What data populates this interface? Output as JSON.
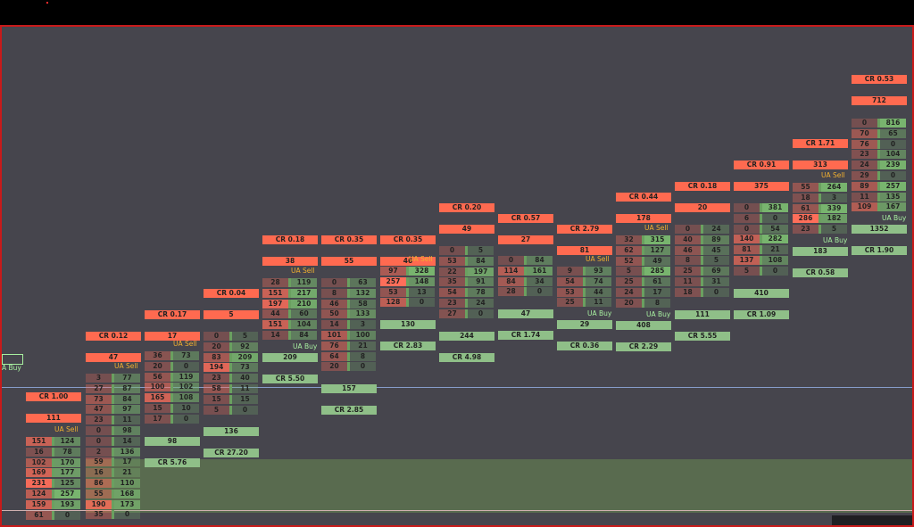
{
  "colors": {
    "background": "#46454d",
    "frame_border": "#c81a1a",
    "ask_red": "#ff6a50",
    "bid_green": "#8fbf88",
    "ua_sell_label": "#f0b030",
    "ua_buy_label": "#a8f0a0",
    "threshold_line": "#8ea6d8",
    "poc_box": "#d01a3a"
  },
  "columns": [
    {
      "cr": "CR 1.00",
      "total": "111",
      "ua": "UA Sell",
      "ua_type": "sell",
      "rows": [
        [
          "151",
          "124"
        ],
        [
          "16",
          "78"
        ],
        [
          "102",
          "170"
        ],
        [
          "169",
          "177"
        ],
        [
          "231",
          "125"
        ],
        [
          "124",
          "257"
        ],
        [
          "159",
          "193"
        ],
        [
          "61",
          "0"
        ]
      ],
      "delta": ""
    },
    {
      "cr": "CR 0.12",
      "total": "47",
      "ua": "UA Sell",
      "ua_type": "sell",
      "rows": [
        [
          "3",
          "77"
        ],
        [
          "27",
          "87"
        ],
        [
          "73",
          "84"
        ],
        [
          "47",
          "97"
        ],
        [
          "23",
          "11"
        ],
        [
          "0",
          "98"
        ],
        [
          "0",
          "14"
        ],
        [
          "2",
          "136"
        ],
        [
          "59",
          "17"
        ],
        [
          "16",
          "21"
        ],
        [
          "86",
          "110"
        ],
        [
          "55",
          "168"
        ],
        [
          "190",
          "173"
        ],
        [
          "35",
          "0"
        ]
      ],
      "delta": ""
    },
    {
      "cr": "CR 0.17",
      "total": "17",
      "ua": "UA Sell",
      "ua_type": "sell",
      "rows": [
        [
          "36",
          "73"
        ],
        [
          "20",
          "0"
        ],
        [
          "56",
          "119"
        ],
        [
          "100",
          "102"
        ],
        [
          "165",
          "108"
        ],
        [
          "15",
          "10"
        ],
        [
          "17",
          "0"
        ]
      ],
      "delta": "98",
      "delta2": "CR 5.76"
    },
    {
      "cr": "CR 0.04",
      "total": "5",
      "ua": "",
      "ua_type": "",
      "rows": [
        [
          "0",
          "5"
        ],
        [
          "20",
          "92"
        ],
        [
          "83",
          "209"
        ],
        [
          "194",
          "73"
        ],
        [
          "23",
          "40"
        ],
        [
          "58",
          "11"
        ],
        [
          "15",
          "15"
        ],
        [
          "5",
          "0"
        ]
      ],
      "delta": "136",
      "delta2": "CR 27.20"
    },
    {
      "cr": "CR 0.18",
      "total": "38",
      "ua": "UA Sell",
      "ua_type": "sell",
      "ua_buy": "UA Buy",
      "rows": [
        [
          "28",
          "119"
        ],
        [
          "151",
          "217"
        ],
        [
          "197",
          "210"
        ],
        [
          "44",
          "60"
        ],
        [
          "151",
          "104"
        ],
        [
          "14",
          "84"
        ]
      ],
      "delta": "209",
      "delta2": "CR 5.50"
    },
    {
      "cr": "CR 0.35",
      "total": "55",
      "ua": "",
      "ua_type": "",
      "rows": [
        [
          "0",
          "63"
        ],
        [
          "8",
          "132"
        ],
        [
          "46",
          "58"
        ],
        [
          "50",
          "133"
        ],
        [
          "14",
          "3"
        ],
        [
          "101",
          "100"
        ],
        [
          "76",
          "21"
        ],
        [
          "64",
          "8"
        ],
        [
          "20",
          "0"
        ]
      ],
      "delta": "157",
      "delta2": "CR 2.85"
    },
    {
      "cr": "CR 0.35",
      "total": "46",
      "ua": "UA Sell",
      "ua_type": "sell",
      "rows": [
        [
          "97",
          "328"
        ],
        [
          "257",
          "148"
        ],
        [
          "53",
          "13"
        ],
        [
          "128",
          "0"
        ]
      ],
      "delta": "130",
      "delta2": "CR 2.83"
    },
    {
      "cr": "CR 0.20",
      "total": "49",
      "ua": "",
      "ua_type": "",
      "rows": [
        [
          "0",
          "5"
        ],
        [
          "53",
          "84"
        ],
        [
          "22",
          "197"
        ],
        [
          "35",
          "91"
        ],
        [
          "54",
          "78"
        ],
        [
          "23",
          "24"
        ],
        [
          "27",
          "0"
        ]
      ],
      "delta": "244",
      "delta2": "CR 4.98"
    },
    {
      "cr": "CR 0.57",
      "total": "27",
      "ua": "",
      "ua_type": "",
      "rows": [
        [
          "0",
          "84"
        ],
        [
          "114",
          "161"
        ],
        [
          "84",
          "34"
        ],
        [
          "28",
          "0"
        ]
      ],
      "delta": "47",
      "delta2": "CR 1.74"
    },
    {
      "cr": "CR 2.79",
      "total": "81",
      "ua": "UA Sell",
      "ua_type": "sell",
      "ua_buy": "UA Buy",
      "rows": [
        [
          "9",
          "93"
        ],
        [
          "54",
          "74"
        ],
        [
          "53",
          "44"
        ],
        [
          "25",
          "11"
        ]
      ],
      "delta": "29",
      "delta2": "CR 0.36"
    },
    {
      "cr": "CR 0.44",
      "total": "178",
      "ua": "UA Sell",
      "ua_type": "sell",
      "ua_buy": "UA Buy",
      "rows": [
        [
          "32",
          "315"
        ],
        [
          "62",
          "127"
        ],
        [
          "52",
          "49"
        ],
        [
          "5",
          "285"
        ],
        [
          "25",
          "61"
        ],
        [
          "24",
          "17"
        ],
        [
          "20",
          "8"
        ]
      ],
      "delta": "408",
      "delta2": "CR 2.29"
    },
    {
      "cr": "CR 0.18",
      "total": "20",
      "ua": "",
      "ua_type": "",
      "rows": [
        [
          "0",
          "24"
        ],
        [
          "40",
          "89"
        ],
        [
          "46",
          "45"
        ],
        [
          "8",
          "5"
        ],
        [
          "25",
          "69"
        ],
        [
          "11",
          "31"
        ],
        [
          "18",
          "0"
        ]
      ],
      "delta": "111",
      "delta2": "CR 5.55"
    },
    {
      "cr": "CR 0.91",
      "total": "375",
      "ua": "",
      "ua_type": "",
      "rows": [
        [
          "0",
          "381"
        ],
        [
          "6",
          "0"
        ],
        [
          "0",
          "54"
        ],
        [
          "140",
          "282"
        ],
        [
          "81",
          "21"
        ],
        [
          "137",
          "108"
        ],
        [
          "5",
          "0"
        ]
      ],
      "delta": "410",
      "delta2": "CR 1.09"
    },
    {
      "cr": "CR 1.71",
      "total": "313",
      "ua": "UA Sell",
      "ua_type": "sell",
      "ua_buy": "UA Buy",
      "rows": [
        [
          "55",
          "264"
        ],
        [
          "18",
          "3"
        ],
        [
          "61",
          "339"
        ],
        [
          "286",
          "182"
        ],
        [
          "23",
          "5"
        ]
      ],
      "delta": "183",
      "delta2": "CR 0.58"
    },
    {
      "cr": "CR 0.53",
      "total": "712",
      "ua": "",
      "ua_type": "",
      "ua_buy": "UA Buy",
      "rows": [
        [
          "0",
          "816"
        ],
        [
          "70",
          "65"
        ],
        [
          "76",
          "0"
        ],
        [
          "23",
          "104"
        ],
        [
          "24",
          "239"
        ],
        [
          "29",
          "0"
        ],
        [
          "89",
          "257"
        ],
        [
          "11",
          "135"
        ],
        [
          "109",
          "167"
        ]
      ],
      "delta": "1352",
      "delta2": "CR 1.90"
    }
  ],
  "left_edge_label": "A Buy"
}
